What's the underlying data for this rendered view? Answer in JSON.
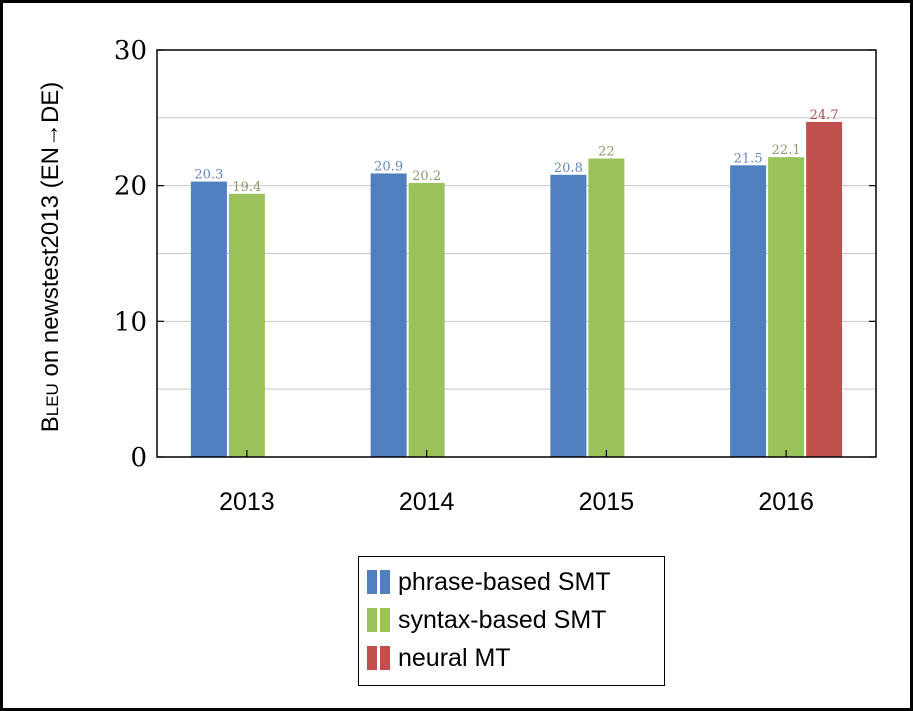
{
  "chart_data": {
    "type": "bar",
    "ylabel_prefix": "Bleu",
    "ylabel_rest": "on newstest2013 (EN→DE)",
    "xlabel": "",
    "ylim": [
      0,
      30
    ],
    "yticks": [
      0,
      10,
      20,
      30
    ],
    "grid": "horizontal",
    "legend_position": "bottom",
    "categories": [
      "2013",
      "2014",
      "2015",
      "2016"
    ],
    "series": [
      {
        "name": "phrase-based SMT",
        "color": "#4f7fbf",
        "label_color": "#6688b8",
        "values": [
          20.3,
          20.9,
          20.8,
          21.5
        ]
      },
      {
        "name": "syntax-based SMT",
        "color": "#9bc15a",
        "label_color": "#8a9a6a",
        "values": [
          19.4,
          20.2,
          22,
          22.1
        ]
      },
      {
        "name": "neural MT",
        "color": "#c0504d",
        "label_color": "#b05050",
        "values": [
          null,
          null,
          null,
          24.7
        ]
      }
    ],
    "data_labels": [
      [
        "20.3",
        "20.9",
        "20.8",
        "21.5"
      ],
      [
        "19.4",
        "20.2",
        "22",
        "22.1"
      ],
      [
        null,
        null,
        null,
        "24.7"
      ]
    ]
  }
}
